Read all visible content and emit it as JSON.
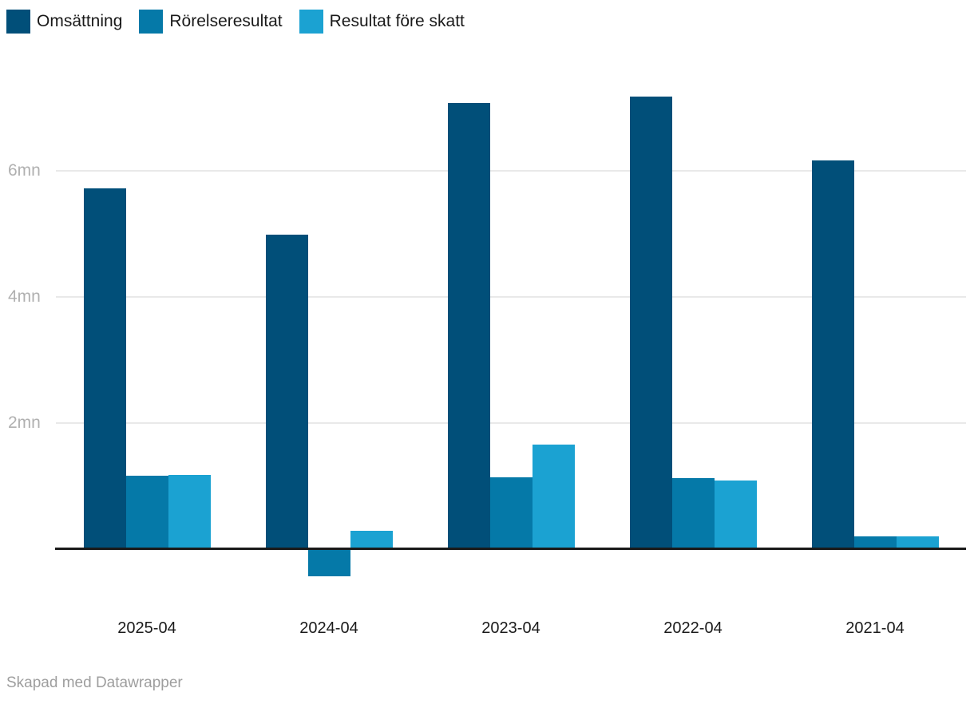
{
  "chart_data": {
    "type": "bar",
    "title": "",
    "xlabel": "",
    "ylabel": "",
    "unit": "mn",
    "categories": [
      "2025-04",
      "2024-04",
      "2023-04",
      "2022-04",
      "2021-04"
    ],
    "series": [
      {
        "name": "Omsättning",
        "color": "#014f79",
        "values": [
          5.72,
          4.99,
          7.08,
          7.18,
          6.16
        ]
      },
      {
        "name": "Rörelseresultat",
        "color": "#0579a8",
        "values": [
          1.16,
          -0.43,
          1.14,
          1.13,
          0.2
        ]
      },
      {
        "name": "Resultat före skatt",
        "color": "#1ba2d2",
        "values": [
          1.18,
          0.29,
          1.66,
          1.09,
          0.2
        ]
      }
    ],
    "y_ticks": [
      {
        "value": 2,
        "label": "2mn"
      },
      {
        "value": 4,
        "label": "4mn"
      },
      {
        "value": 6,
        "label": "6mn"
      }
    ],
    "ylim": [
      -0.5,
      7.3
    ],
    "grid": "horizontal",
    "legend_position": "top-left"
  },
  "footer": {
    "attribution": "Skapad med Datawrapper"
  },
  "colors": {
    "background": "#ffffff",
    "axis_line": "#1a1a1a",
    "gridline": "#e9e9e9",
    "tick_label": "#b0b0b0",
    "category_label": "#1a1a1a",
    "legend_label": "#1a1a1a",
    "footer_text": "#9e9e9e"
  }
}
